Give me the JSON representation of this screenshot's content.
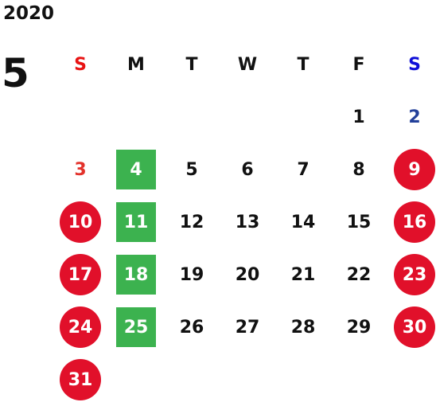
{
  "year": "2020",
  "month": "5",
  "weekdays": [
    "S",
    "M",
    "T",
    "W",
    "T",
    "F",
    "S"
  ],
  "weeks": [
    [
      "",
      "",
      "",
      "",
      "",
      "1",
      "2"
    ],
    [
      "3",
      "4",
      "5",
      "6",
      "7",
      "8",
      "9"
    ],
    [
      "10",
      "11",
      "12",
      "13",
      "14",
      "15",
      "16"
    ],
    [
      "17",
      "18",
      "19",
      "20",
      "21",
      "22",
      "23"
    ],
    [
      "24",
      "25",
      "26",
      "27",
      "28",
      "29",
      "30"
    ],
    [
      "31",
      "",
      "",
      "",
      "",
      "",
      ""
    ]
  ],
  "colors": {
    "holiday_circle": "#e1102a",
    "green_box": "#3cb24f",
    "sunday_text": "#e3322b",
    "saturday_text": "#23409a",
    "sunday_header": "#e81313",
    "saturday_header": "#1010d8"
  }
}
